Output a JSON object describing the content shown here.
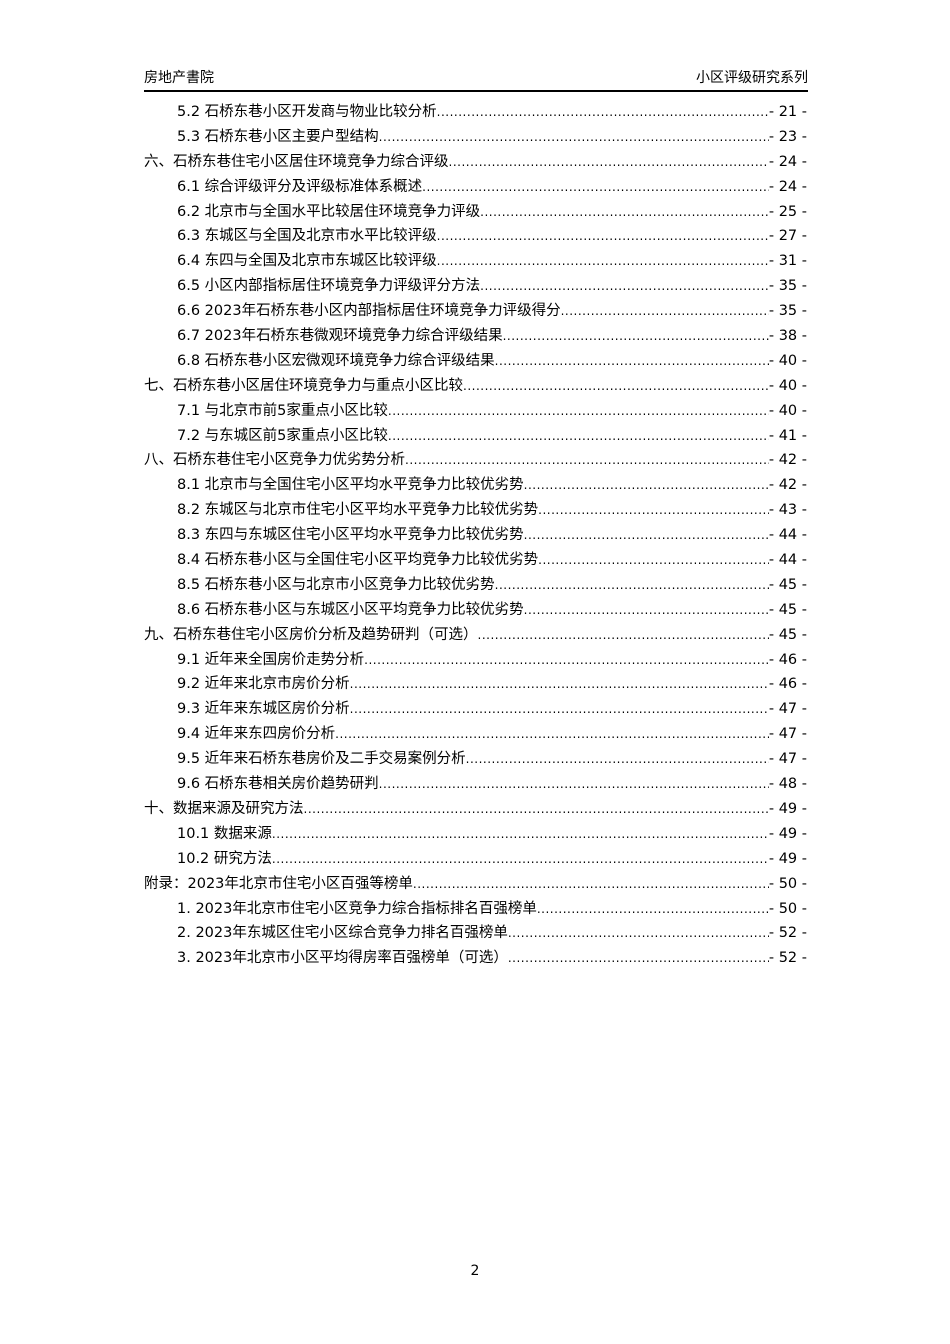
{
  "header": {
    "left": "房地产書院",
    "right": "小区评级研究系列"
  },
  "toc": [
    {
      "level": 2,
      "title": "5.2 石桥东巷小区开发商与物业比较分析",
      "page": "- 21 -"
    },
    {
      "level": 2,
      "title": "5.3 石桥东巷小区主要户型结构",
      "page": "- 23 -"
    },
    {
      "level": 1,
      "title": "六、石桥东巷住宅小区居住环境竞争力综合评级",
      "page": "- 24 -"
    },
    {
      "level": 2,
      "title": "6.1 综合评级评分及评级标准体系概述",
      "page": "- 24 -"
    },
    {
      "level": 2,
      "title": "6.2 北京市与全国水平比较居住环境竞争力评级",
      "page": "- 25 -"
    },
    {
      "level": 2,
      "title": "6.3 东城区与全国及北京市水平比较评级",
      "page": "- 27 -"
    },
    {
      "level": 2,
      "title": "6.4 东四与全国及北京市东城区比较评级",
      "page": "- 31 -"
    },
    {
      "level": 2,
      "title": "6.5 小区内部指标居住环境竞争力评级评分方法",
      "page": "- 35 -"
    },
    {
      "level": 2,
      "title": "6.6 2023年石桥东巷小区内部指标居住环境竞争力评级得分",
      "page": "- 35 -"
    },
    {
      "level": 2,
      "title": "6.7 2023年石桥东巷微观环境竞争力综合评级结果",
      "page": "- 38 -"
    },
    {
      "level": 2,
      "title": "6.8 石桥东巷小区宏微观环境竞争力综合评级结果",
      "page": "- 40 -"
    },
    {
      "level": 1,
      "title": "七、石桥东巷小区居住环境竞争力与重点小区比较",
      "page": "- 40 -"
    },
    {
      "level": 2,
      "title": "7.1 与北京市前5家重点小区比较",
      "page": "- 40 -"
    },
    {
      "level": 2,
      "title": "7.2 与东城区前5家重点小区比较",
      "page": "- 41 -"
    },
    {
      "level": 1,
      "title": "八、石桥东巷住宅小区竞争力优劣势分析",
      "page": "- 42 -"
    },
    {
      "level": 2,
      "title": "8.1 北京市与全国住宅小区平均水平竞争力比较优劣势",
      "page": "- 42 -"
    },
    {
      "level": 2,
      "title": "8.2 东城区与北京市住宅小区平均水平竞争力比较优劣势",
      "page": "- 43 -"
    },
    {
      "level": 2,
      "title": "8.3 东四与东城区住宅小区平均水平竞争力比较优劣势",
      "page": "- 44 -"
    },
    {
      "level": 2,
      "title": "8.4 石桥东巷小区与全国住宅小区平均竞争力比较优劣势",
      "page": "- 44 -"
    },
    {
      "level": 2,
      "title": "8.5 石桥东巷小区与北京市小区竞争力比较优劣势",
      "page": "- 45 -"
    },
    {
      "level": 2,
      "title": "8.6 石桥东巷小区与东城区小区平均竞争力比较优劣势",
      "page": "- 45 -"
    },
    {
      "level": 1,
      "title": "九、石桥东巷住宅小区房价分析及趋势研判（可选）",
      "page": "- 45 -"
    },
    {
      "level": 2,
      "title": "9.1 近年来全国房价走势分析",
      "page": "- 46 -"
    },
    {
      "level": 2,
      "title": "9.2 近年来北京市房价分析",
      "page": "- 46 -"
    },
    {
      "level": 2,
      "title": "9.3 近年来东城区房价分析",
      "page": "- 47 -"
    },
    {
      "level": 2,
      "title": "9.4 近年来东四房价分析",
      "page": "- 47 -"
    },
    {
      "level": 2,
      "title": "9.5 近年来石桥东巷房价及二手交易案例分析",
      "page": "- 47 -"
    },
    {
      "level": 2,
      "title": "9.6 石桥东巷相关房价趋势研判",
      "page": "- 48 -"
    },
    {
      "level": 1,
      "title": "十、数据来源及研究方法",
      "page": "- 49 -"
    },
    {
      "level": 2,
      "title": "10.1 数据来源",
      "page": "- 49 -"
    },
    {
      "level": 2,
      "title": "10.2 研究方法",
      "page": "- 49 -"
    },
    {
      "level": 1,
      "title": "附录：2023年北京市住宅小区百强等榜单",
      "page": "- 50 -"
    },
    {
      "level": 2,
      "title": "1. 2023年北京市住宅小区竞争力综合指标排名百强榜单",
      "page": "- 50 -"
    },
    {
      "level": 2,
      "title": "2. 2023年东城区住宅小区综合竞争力排名百强榜单",
      "page": "- 52 -"
    },
    {
      "level": 2,
      "title": "3. 2023年北京市小区平均得房率百强榜单（可选）",
      "page": "- 52 -"
    }
  ],
  "footer": {
    "page_number": "2"
  }
}
